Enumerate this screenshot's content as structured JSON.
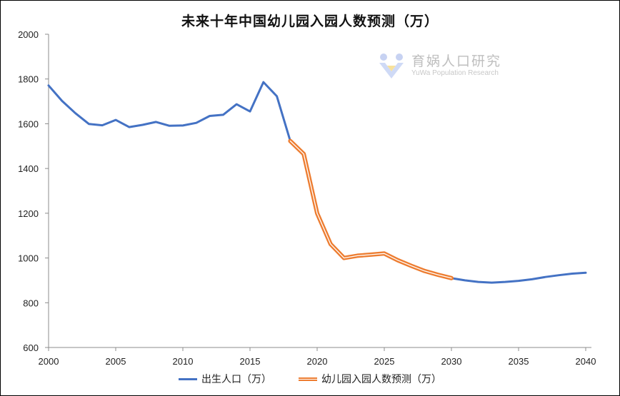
{
  "chart_data": {
    "type": "line",
    "title": "未来十年中国幼儿园入园人数预测（万）",
    "xlim": [
      2000,
      2040
    ],
    "ylim": [
      600,
      2000
    ],
    "xticks": [
      2000,
      2005,
      2010,
      2015,
      2020,
      2025,
      2030,
      2035,
      2040
    ],
    "yticks": [
      600,
      800,
      1000,
      1200,
      1400,
      1600,
      1800,
      2000
    ],
    "grid": false,
    "legend_position": "bottom",
    "series": [
      {
        "name": "出生人口（万）",
        "color": "#4472C4",
        "style": "solid",
        "points": [
          [
            2000,
            1771
          ],
          [
            2001,
            1702
          ],
          [
            2002,
            1647
          ],
          [
            2003,
            1599
          ],
          [
            2004,
            1593
          ],
          [
            2005,
            1617
          ],
          [
            2006,
            1585
          ],
          [
            2007,
            1595
          ],
          [
            2008,
            1608
          ],
          [
            2009,
            1591
          ],
          [
            2010,
            1592
          ],
          [
            2011,
            1604
          ],
          [
            2012,
            1635
          ],
          [
            2013,
            1640
          ],
          [
            2014,
            1687
          ],
          [
            2015,
            1655
          ],
          [
            2016,
            1786
          ],
          [
            2017,
            1723
          ],
          [
            2018,
            1523
          ],
          [
            2019,
            1465
          ],
          [
            2020,
            1200
          ],
          [
            2021,
            1062
          ],
          [
            2022,
            1000
          ],
          [
            2023,
            1010
          ],
          [
            2024,
            1015
          ],
          [
            2025,
            1020
          ],
          [
            2026,
            990
          ],
          [
            2027,
            965
          ],
          [
            2028,
            942
          ],
          [
            2029,
            925
          ],
          [
            2030,
            910
          ],
          [
            2031,
            900
          ],
          [
            2032,
            893
          ],
          [
            2033,
            890
          ],
          [
            2034,
            893
          ],
          [
            2035,
            898
          ],
          [
            2036,
            905
          ],
          [
            2037,
            915
          ],
          [
            2038,
            923
          ],
          [
            2039,
            930
          ],
          [
            2040,
            934
          ]
        ]
      },
      {
        "name": "幼儿园入园人数预测（万）",
        "color": "#ED7D31",
        "style": "double",
        "points": [
          [
            2018,
            1523
          ],
          [
            2019,
            1465
          ],
          [
            2020,
            1200
          ],
          [
            2021,
            1062
          ],
          [
            2022,
            1000
          ],
          [
            2023,
            1010
          ],
          [
            2024,
            1015
          ],
          [
            2025,
            1020
          ],
          [
            2026,
            990
          ],
          [
            2027,
            965
          ],
          [
            2028,
            942
          ],
          [
            2029,
            925
          ],
          [
            2030,
            910
          ]
        ]
      }
    ]
  },
  "watermark": {
    "text": "育娲人口研究",
    "subtext": "YuWa Population Research",
    "icon": "yuwa-logo-icon"
  }
}
